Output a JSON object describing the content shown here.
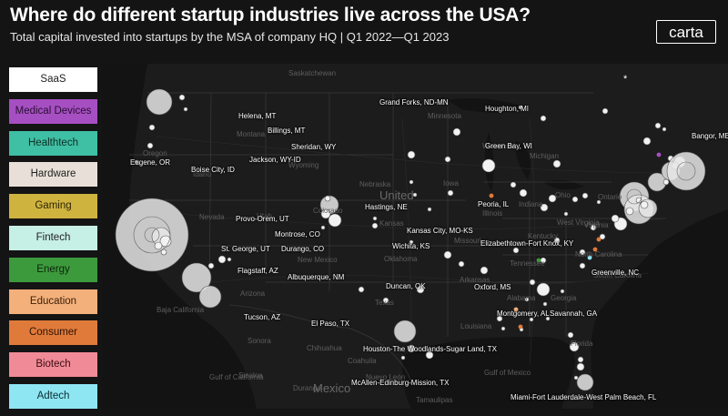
{
  "header": {
    "title": "Where do different startup industries live across the USA?",
    "subtitle": "Total capital invested into startups by the MSA of company HQ | Q1 2022—Q1 2023",
    "logo": "carta"
  },
  "legend": [
    {
      "label": "SaaS",
      "color": "#ffffff",
      "text_color": "#222222"
    },
    {
      "label": "Medical Devices",
      "color": "#a64fc2",
      "text_color": "#2a0f33"
    },
    {
      "label": "Healthtech",
      "color": "#3fbfa3",
      "text_color": "#0f2e27"
    },
    {
      "label": "Hardware",
      "color": "#e8e0d8",
      "text_color": "#222222"
    },
    {
      "label": "Gaming",
      "color": "#cfb33f",
      "text_color": "#2e2608"
    },
    {
      "label": "Fintech",
      "color": "#c6efe6",
      "text_color": "#222222"
    },
    {
      "label": "Energy",
      "color": "#3c9a3c",
      "text_color": "#0d240d"
    },
    {
      "label": "Education",
      "color": "#f4b07a",
      "text_color": "#3a1f08"
    },
    {
      "label": "Consumer",
      "color": "#e07a3a",
      "text_color": "#2e1204"
    },
    {
      "label": "Biotech",
      "color": "#f08a96",
      "text_color": "#3a0e14"
    },
    {
      "label": "Adtech",
      "color": "#8ee6f2",
      "text_color": "#0a2e33"
    }
  ],
  "map": {
    "compass": "*",
    "country_labels": [
      "United",
      "Mexico"
    ],
    "region_labels": [
      "Saskatchewan",
      "Minnesota",
      "Montana",
      "Idaho",
      "Wyoming",
      "Oregon",
      "Nevada",
      "Utah",
      "Colorado",
      "Nebraska",
      "Kansas",
      "Oklahoma",
      "Texas",
      "Arizona",
      "New Mexico",
      "Missouri",
      "Illinois",
      "Indiana",
      "Ohio",
      "Kentucky",
      "Tennessee",
      "Alabama",
      "Georgia",
      "North Carolina",
      "South Carolina",
      "Virginia",
      "West Virginia",
      "Louisiana",
      "Arkansas",
      "Michigan",
      "Wisconsin",
      "Iowa",
      "Florida",
      "Chihuahua",
      "Coahuila",
      "Nuevo León",
      "Sonora",
      "Durango",
      "Sinaloa",
      "Tamaulipas",
      "Baja California",
      "Gulf of California",
      "Gulf of Mexico",
      "Ontario"
    ],
    "city_labels": [
      "Helena, MT",
      "Billings, MT",
      "Grand Forks, ND-MN",
      "Houghton, MI",
      "Green Bay, WI",
      "Sheridan, WY",
      "Eugene, OR",
      "Boise City, ID",
      "Jackson, WY-ID",
      "Hastings, NE",
      "Peoria, IL",
      "Provo-Orem, UT",
      "Kansas City, MO-KS",
      "Montrose, CO",
      "Elizabethtown-Fort Knox, KY",
      "St. George, UT",
      "Durango, CO",
      "Wichita, KS",
      "Flagstaff, AZ",
      "Albuquerque, NM",
      "Greenville, NC",
      "Duncan, OK",
      "Oxford, MS",
      "Montgomery, AL",
      "Savannah, GA",
      "Tucson, AZ",
      "El Paso, TX",
      "Houston-The Woodlands-Sugar Land, TX",
      "McAllen-Edinburg-Mission, TX",
      "Miami-Fort Lauderdale-West Palm Beach, FL",
      "Bangor, ME"
    ]
  }
}
